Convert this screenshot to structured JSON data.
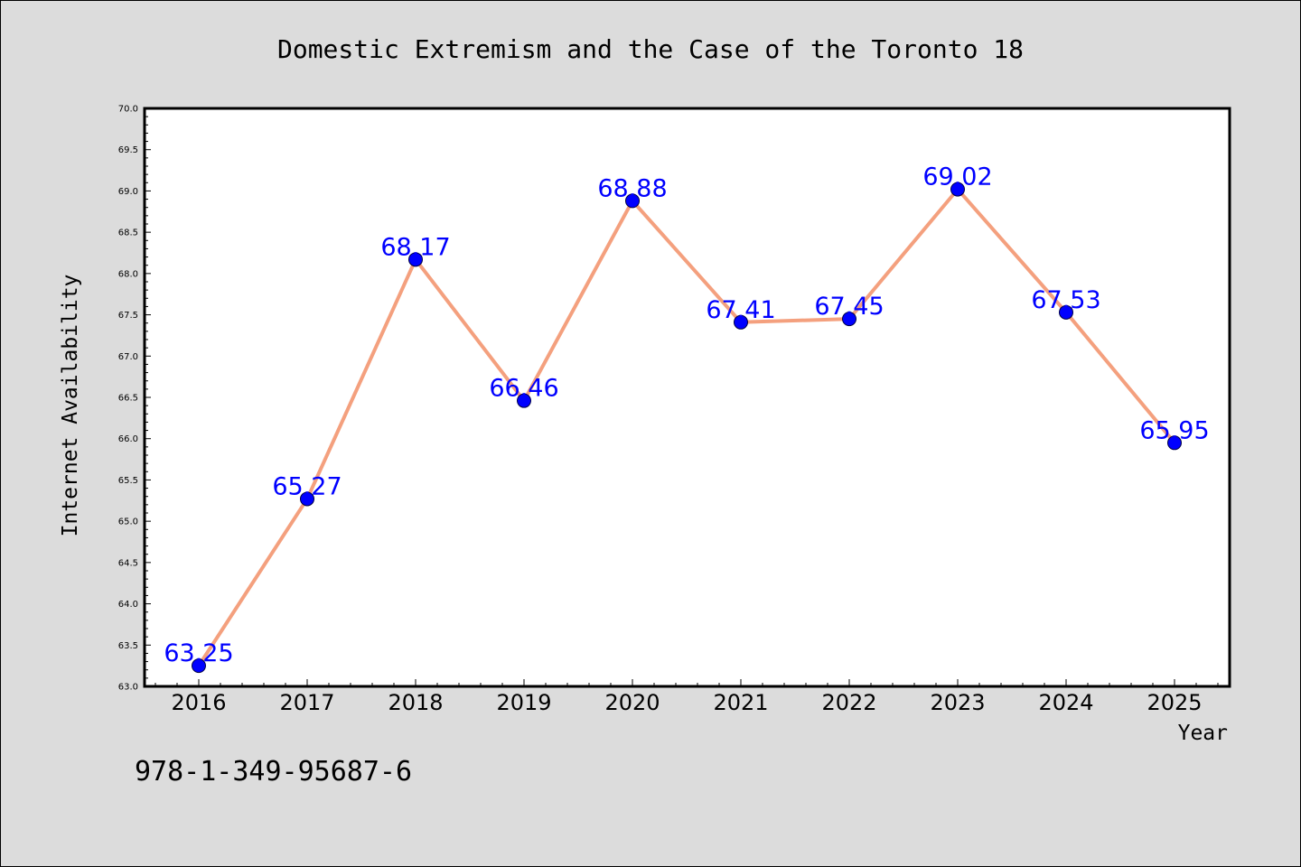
{
  "chart_data": {
    "type": "line",
    "title": "Domestic Extremism and the Case of the Toronto 18",
    "xlabel": "Year",
    "ylabel": "Internet Availability",
    "categories": [
      "2016",
      "2017",
      "2018",
      "2019",
      "2020",
      "2021",
      "2022",
      "2023",
      "2024",
      "2025"
    ],
    "series": [
      {
        "values": [
          63.25,
          65.27,
          68.17,
          66.46,
          68.88,
          67.41,
          67.45,
          69.02,
          67.53,
          65.95
        ],
        "labels": [
          "63.25",
          "65.27",
          "68.17",
          "66.46",
          "68.88",
          "67.41",
          "67.45",
          "69.02",
          "67.53",
          "65.95"
        ],
        "line_color": "#f4a07e",
        "marker_color": "#0000ff",
        "label_color": "#0000ff"
      }
    ],
    "ylim": [
      63.0,
      70.0
    ],
    "yticks": [
      "63.0",
      "63.5",
      "64.0",
      "64.5",
      "65.0",
      "65.5",
      "66.0",
      "66.5",
      "67.0",
      "67.5",
      "68.0",
      "68.5",
      "69.0",
      "69.5",
      "70.0"
    ],
    "grid": false,
    "legend": "none"
  },
  "footnote": "978-1-349-95687-6",
  "colors": {
    "background": "#dcdcdc",
    "plot_background": "#ffffff",
    "axis": "#000000"
  }
}
